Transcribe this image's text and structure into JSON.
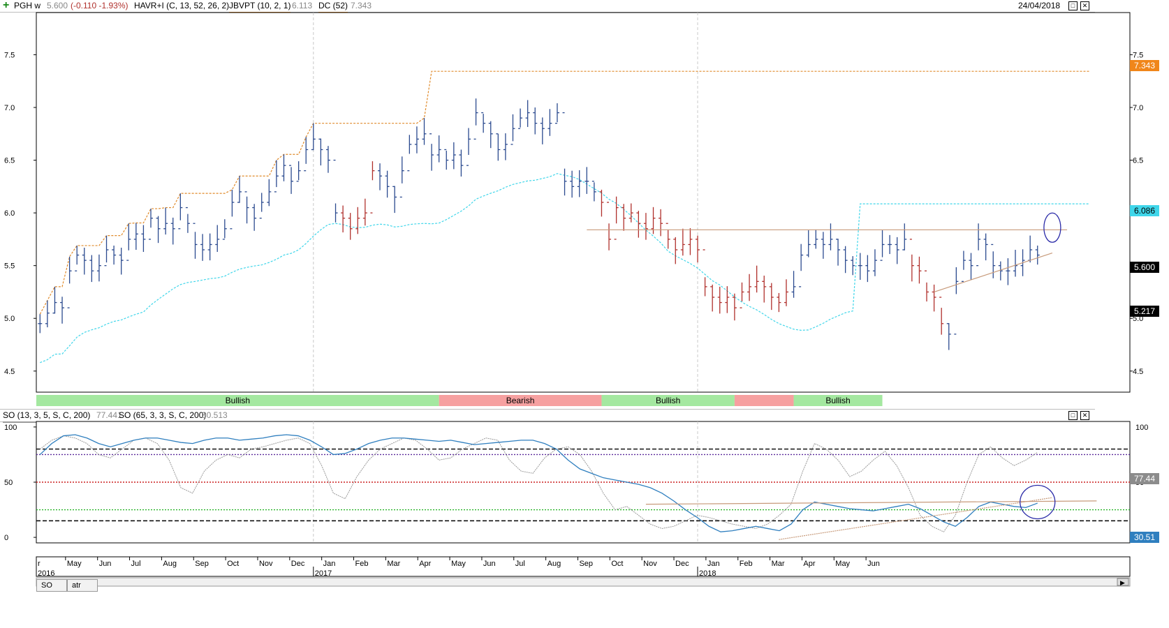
{
  "colors": {
    "up_bar": "#2b4a8f",
    "down_bar": "#b0302c",
    "donchian": "#e08a2a",
    "jbvpt": "#3fd6ea",
    "so_fast": "#9a9a9a",
    "so_slow": "#2f7fbf",
    "bull_band": "#a4e8a0",
    "bear_band": "#f6a0a0",
    "trendline": "#c79a7a",
    "circle": "#2b2ba8"
  },
  "header": {
    "symbol": "PGH w",
    "last": "5.600",
    "change": "(-0.110 -1.93%)",
    "ind1": "HAVR+I (C, 13, 52, 26, 2)",
    "ind2_name": "JBVPT (10, 2, 1)",
    "ind2_value": "6.113",
    "ind3_name": "DC (52)",
    "ind3_value": "7.343",
    "date": "24/04/2018"
  },
  "price_labels": {
    "dc": "7.343",
    "jbvpt": "6.086",
    "last": "5.600",
    "support": "5.217"
  },
  "so_header": {
    "so1_name": "SO (13, 3, 5, S, C, 200)",
    "so1_value": "77.441",
    "so2_name": "SO (65, 3, 3, S, C, 200)",
    "so2_value": "30.513",
    "label_so1": "77.44",
    "label_so2": "30.51"
  },
  "tabs": [
    "SO",
    "atr"
  ],
  "regime_bands": [
    {
      "label": "Bullish",
      "state": "bull",
      "start": "2016-01",
      "end": "2017-05"
    },
    {
      "label": "Bearish",
      "state": "bear",
      "start": "2017-05",
      "end": "2017-10"
    },
    {
      "label": "Bullish",
      "state": "bull",
      "start": "2017-10",
      "end": "2018-01"
    },
    {
      "label": "",
      "state": "bear",
      "start": "2018-01",
      "end": "2018-02"
    },
    {
      "label": "Bullish",
      "state": "bull",
      "start": "2018-02",
      "end": "2018-04"
    }
  ],
  "chart_data": [
    {
      "type": "ohlc",
      "x_unit": "week",
      "x_start": "2016-04-18",
      "ylim": [
        4.3,
        7.9
      ],
      "yticks": [
        "4.5",
        "5.0",
        "5.5",
        "6.0",
        "6.5",
        "7.0",
        "7.5"
      ],
      "grid": true,
      "close": [
        4.95,
        5.05,
        5.15,
        5.1,
        5.45,
        5.6,
        5.55,
        5.45,
        5.5,
        5.65,
        5.6,
        5.55,
        5.75,
        5.8,
        5.75,
        5.95,
        5.85,
        5.9,
        5.85,
        6.05,
        5.9,
        5.7,
        5.65,
        5.7,
        5.75,
        5.85,
        6.1,
        6.2,
        6.05,
        5.95,
        6.1,
        6.2,
        6.35,
        6.45,
        6.3,
        6.4,
        6.6,
        6.7,
        6.6,
        6.5,
        6.0,
        5.95,
        5.85,
        5.95,
        6.0,
        6.4,
        6.35,
        6.25,
        6.15,
        6.4,
        6.65,
        6.7,
        6.75,
        6.55,
        6.6,
        6.5,
        6.55,
        6.45,
        6.7,
        6.95,
        6.85,
        6.75,
        6.6,
        6.65,
        6.8,
        6.9,
        6.95,
        6.85,
        6.8,
        6.85,
        6.95,
        6.3,
        6.25,
        6.3,
        6.3,
        6.2,
        6.1,
        5.75,
        6.05,
        5.95,
        6.0,
        5.9,
        5.85,
        5.95,
        5.9,
        5.75,
        5.65,
        5.7,
        5.75,
        5.65,
        5.3,
        5.2,
        5.15,
        5.2,
        5.1,
        5.25,
        5.3,
        5.35,
        5.3,
        5.2,
        5.15,
        5.25,
        5.3,
        5.6,
        5.7,
        5.75,
        5.7,
        5.75,
        5.65,
        5.55,
        5.5,
        5.5,
        5.45,
        5.55,
        5.7,
        5.7,
        5.65,
        5.75,
        5.5,
        5.45,
        5.25,
        5.2,
        4.95,
        4.85,
        5.35,
        5.55,
        5.5,
        5.75,
        5.7,
        5.5,
        5.45,
        5.45,
        5.5,
        5.55,
        5.65,
        5.6
      ],
      "swing_high": 5.84,
      "trend_support_start": 5.25,
      "trend_support_end": 5.62,
      "donchian_52": 7.343,
      "jbvpt": 6.086,
      "x_ticks": [
        "r",
        "May",
        "Jun",
        "Jul",
        "Aug",
        "Sep",
        "Oct",
        "Nov",
        "Dec",
        "Jan",
        "Feb",
        "Mar",
        "Apr",
        "May",
        "Jun",
        "Jul",
        "Aug",
        "Sep",
        "Oct",
        "Nov",
        "Dec",
        "Jan",
        "Feb",
        "Mar",
        "Apr",
        "May",
        "Jun"
      ],
      "year_labels": [
        "2016",
        "2017",
        "2018"
      ]
    },
    {
      "type": "line",
      "title": "SO",
      "ylim": [
        -5,
        105
      ],
      "yticks": [
        "0",
        "50",
        "100"
      ],
      "levels": [
        80,
        75,
        50,
        25,
        15
      ],
      "series": [
        {
          "name": "SO (13, 3, 5, S, C, 200)",
          "values": [
            80,
            88,
            92,
            90,
            85,
            75,
            72,
            80,
            88,
            90,
            85,
            70,
            45,
            40,
            60,
            70,
            75,
            72,
            80,
            82,
            85,
            88,
            90,
            85,
            65,
            40,
            35,
            55,
            70,
            80,
            85,
            90,
            88,
            80,
            70,
            72,
            80,
            85,
            90,
            88,
            70,
            60,
            58,
            72,
            80,
            82,
            75,
            60,
            40,
            25,
            28,
            20,
            12,
            8,
            10,
            15,
            20,
            18,
            15,
            12,
            10,
            8,
            12,
            20,
            30,
            60,
            85,
            80,
            70,
            55,
            60,
            70,
            78,
            65,
            45,
            20,
            10,
            5,
            20,
            50,
            75,
            82,
            72,
            65,
            70,
            77
          ]
        },
        {
          "name": "SO (65, 3, 3, S, C, 200)",
          "values": [
            75,
            85,
            92,
            93,
            90,
            85,
            82,
            85,
            88,
            90,
            90,
            88,
            86,
            85,
            88,
            90,
            90,
            88,
            89,
            90,
            92,
            93,
            92,
            88,
            82,
            75,
            76,
            80,
            85,
            88,
            90,
            90,
            89,
            88,
            87,
            88,
            86,
            84,
            85,
            86,
            87,
            88,
            88,
            85,
            80,
            70,
            62,
            58,
            54,
            52,
            50,
            48,
            45,
            40,
            33,
            25,
            18,
            10,
            5,
            6,
            8,
            10,
            8,
            6,
            12,
            25,
            32,
            30,
            28,
            26,
            25,
            24,
            26,
            28,
            30,
            26,
            20,
            14,
            10,
            18,
            28,
            32,
            30,
            28,
            27,
            31
          ]
        }
      ]
    }
  ]
}
